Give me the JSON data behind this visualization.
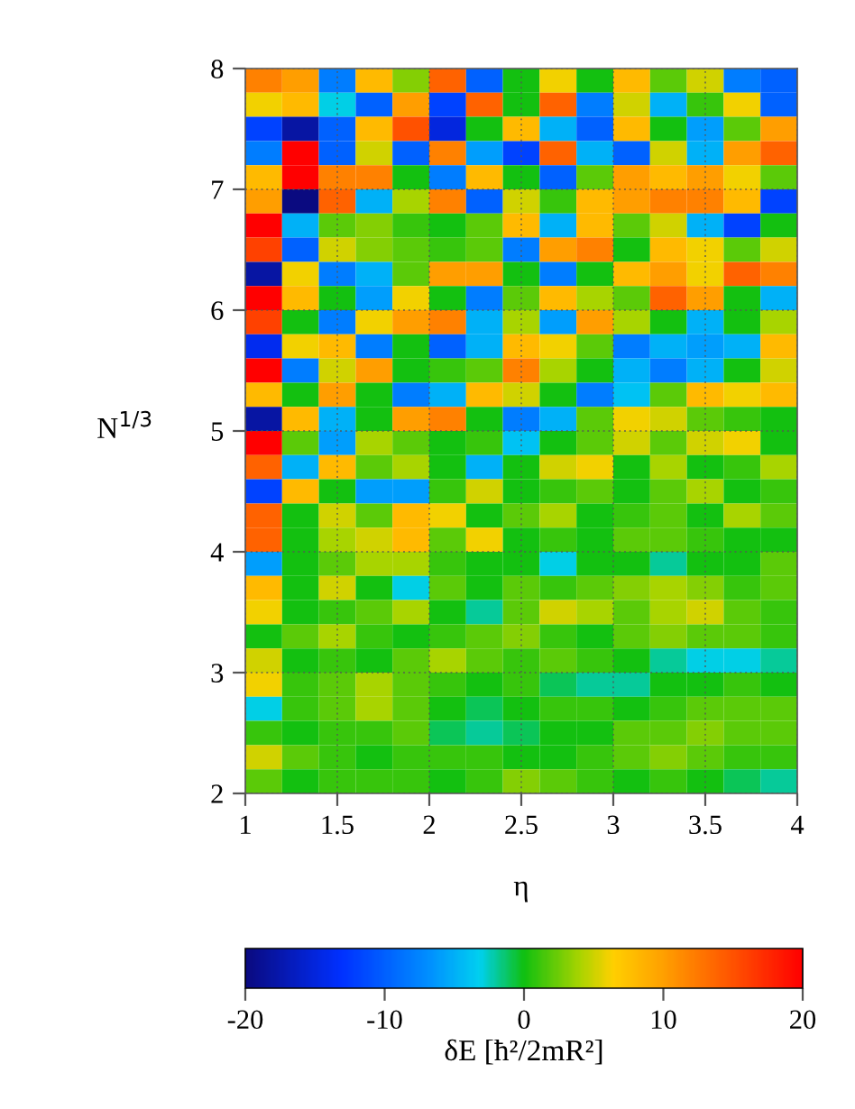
{
  "chart_data": {
    "type": "heatmap",
    "xlabel": "η",
    "ylabel": "N$^{1/3}$",
    "clabel": "δE [ħ²/2mR²]",
    "x": [
      1.1,
      1.3,
      1.5,
      1.7,
      1.9,
      2.1,
      2.3,
      2.5,
      2.7,
      2.9,
      3.1,
      3.3,
      3.5,
      3.7,
      3.9
    ],
    "cells": [
      [
        12,
        10,
        -8,
        8,
        3,
        14,
        -10,
        0,
        6,
        0,
        8,
        2,
        5,
        -8,
        -10
      ],
      [
        6,
        8,
        -3,
        -10,
        10,
        -12,
        14,
        0,
        14,
        -8,
        5,
        -5,
        1,
        6,
        -10
      ],
      [
        -12,
        -18,
        -10,
        8,
        15,
        -15,
        0,
        8,
        -5,
        -10,
        8,
        0,
        -6,
        2,
        10
      ],
      [
        -8,
        20,
        -10,
        5,
        -10,
        12,
        -6,
        -12,
        14,
        -5,
        -10,
        5,
        -5,
        10,
        14
      ],
      [
        8,
        20,
        12,
        12,
        0,
        -8,
        8,
        0,
        -10,
        2,
        10,
        8,
        10,
        6,
        2
      ],
      [
        10,
        -20,
        14,
        -5,
        4,
        12,
        -10,
        5,
        1,
        8,
        10,
        12,
        12,
        8,
        -12
      ],
      [
        20,
        -5,
        2,
        3,
        1,
        0,
        2,
        8,
        -5,
        8,
        2,
        5,
        -5,
        -12,
        0
      ],
      [
        16,
        -10,
        5,
        3,
        2,
        1,
        2,
        -8,
        10,
        12,
        0,
        8,
        6,
        2,
        5
      ],
      [
        -18,
        6,
        -8,
        -5,
        2,
        10,
        10,
        0,
        -8,
        0,
        8,
        10,
        6,
        14,
        12
      ],
      [
        20,
        8,
        0,
        -6,
        6,
        0,
        -8,
        2,
        8,
        4,
        2,
        14,
        10,
        0,
        -5
      ],
      [
        16,
        0,
        -8,
        6,
        10,
        12,
        -5,
        4,
        -6,
        10,
        4,
        0,
        -5,
        0,
        4
      ],
      [
        -14,
        6,
        8,
        -8,
        0,
        -10,
        -5,
        8,
        6,
        2,
        -8,
        -5,
        -6,
        -5,
        8
      ],
      [
        20,
        -8,
        5,
        10,
        0,
        1,
        2,
        12,
        4,
        0,
        -5,
        -8,
        -5,
        0,
        5
      ],
      [
        8,
        0,
        10,
        0,
        -8,
        -5,
        8,
        5,
        0,
        -8,
        -4,
        2,
        8,
        6,
        8
      ],
      [
        -18,
        8,
        -5,
        0,
        10,
        12,
        0,
        -8,
        -5,
        2,
        6,
        5,
        2,
        1,
        0
      ],
      [
        20,
        2,
        -6,
        4,
        2,
        0,
        1,
        -4,
        0,
        2,
        5,
        2,
        5,
        6,
        0
      ],
      [
        14,
        -5,
        8,
        2,
        4,
        0,
        -5,
        0,
        5,
        6,
        0,
        4,
        0,
        1,
        4
      ],
      [
        -12,
        8,
        0,
        -6,
        -6,
        1,
        5,
        0,
        1,
        2,
        0,
        2,
        4,
        0,
        1
      ],
      [
        14,
        0,
        5,
        2,
        8,
        6,
        0,
        2,
        4,
        0,
        1,
        2,
        0,
        4,
        2
      ],
      [
        14,
        0,
        4,
        5,
        8,
        2,
        6,
        0,
        1,
        0,
        2,
        2,
        1,
        0,
        0
      ],
      [
        -6,
        0,
        2,
        4,
        4,
        1,
        0,
        0,
        -3,
        0,
        0,
        -2,
        0,
        0,
        2
      ],
      [
        8,
        0,
        5,
        0,
        -3,
        2,
        0,
        2,
        1,
        2,
        3,
        4,
        3,
        1,
        2
      ],
      [
        6,
        0,
        1,
        2,
        4,
        0,
        -2,
        2,
        5,
        4,
        2,
        4,
        5,
        2,
        1
      ],
      [
        0,
        2,
        4,
        1,
        0,
        1,
        2,
        3,
        1,
        0,
        2,
        3,
        2,
        2,
        1
      ],
      [
        5,
        0,
        1,
        0,
        2,
        4,
        2,
        1,
        2,
        1,
        0,
        -2,
        -3,
        -3,
        -2
      ],
      [
        6,
        1,
        2,
        4,
        2,
        1,
        0,
        1,
        -1,
        -2,
        -2,
        0,
        0,
        1,
        0
      ],
      [
        -3,
        1,
        2,
        4,
        2,
        0,
        -1,
        0,
        1,
        1,
        0,
        1,
        2,
        2,
        2
      ],
      [
        1,
        0,
        1,
        1,
        2,
        -1,
        -2,
        -1,
        0,
        0,
        2,
        2,
        3,
        2,
        2
      ],
      [
        5,
        2,
        1,
        0,
        1,
        1,
        1,
        0,
        0,
        1,
        2,
        3,
        2,
        1,
        1
      ],
      [
        2,
        0,
        1,
        1,
        1,
        0,
        1,
        3,
        2,
        1,
        0,
        1,
        0,
        -1,
        -2
      ]
    ],
    "xlim": [
      1,
      4
    ],
    "xticks": [
      1,
      1.5,
      2,
      2.5,
      3,
      3.5,
      4
    ],
    "ylim": [
      2,
      8
    ],
    "yticks": [
      2,
      3,
      4,
      5,
      6,
      7,
      8
    ],
    "clim": [
      -20,
      20
    ],
    "cticks": [
      -20,
      -10,
      0,
      10,
      20
    ],
    "grid": true
  }
}
